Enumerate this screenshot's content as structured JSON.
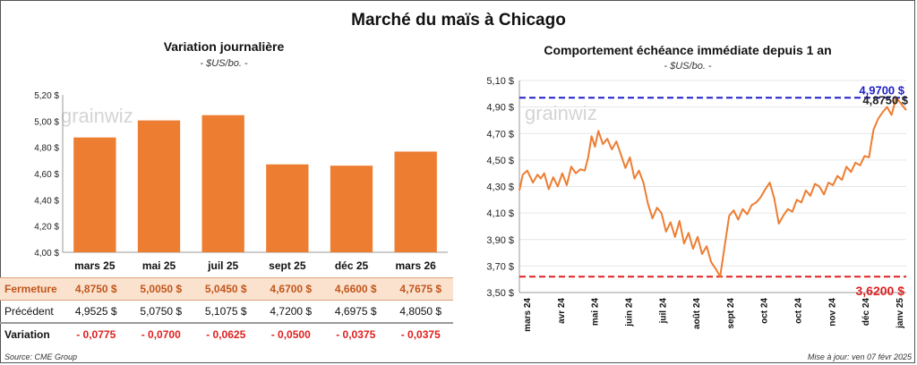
{
  "title": "Marché du maïs à Chicago",
  "left": {
    "subtitle": "Variation journalière",
    "unit": "- $US/bo. -",
    "watermark": "grainwiz"
  },
  "right": {
    "subtitle": "Comportement échéance immédiate depuis 1 an",
    "unit": "- $US/bo. -",
    "watermark": "grainwiz",
    "max_label": "4,9700 $",
    "last_label": "4,8750 $",
    "min_label": "3,6200 $"
  },
  "table": {
    "row_labels": {
      "close": "Fermeture",
      "prev": "Précédent",
      "var": "Variation"
    },
    "close": [
      "4,8750  $",
      "5,0050  $",
      "5,0450  $",
      "4,6700  $",
      "4,6600  $",
      "4,7675  $"
    ],
    "prev": [
      "4,9525  $",
      "5,0750  $",
      "5,1075  $",
      "4,7200  $",
      "4,6975  $",
      "4,8050  $"
    ],
    "var": [
      "- 0,0775",
      "- 0,0700",
      "- 0,0625",
      "- 0,0500",
      "- 0,0375",
      "- 0,0375"
    ]
  },
  "footer": {
    "source": "Source: CME Group",
    "updated": "Mise à jour: ven 07 févr 2025"
  },
  "colors": {
    "bar": "#ed7d31",
    "line": "#ed7d31",
    "max_line": "#1f1fc8",
    "min_line": "#e02020"
  },
  "chart_data": [
    {
      "type": "bar",
      "title": "Variation journalière",
      "categories": [
        "mars 25",
        "mai 25",
        "juil 25",
        "sept 25",
        "déc 25",
        "mars 26"
      ],
      "values": [
        4.875,
        5.005,
        5.045,
        4.67,
        4.66,
        4.7675
      ],
      "ylim": [
        4.0,
        5.2
      ],
      "yticks": [
        4.0,
        4.2,
        4.4,
        4.6,
        4.8,
        5.0,
        5.2
      ],
      "ytick_labels": [
        "4,00 $",
        "4,20 $",
        "4,40 $",
        "4,60 $",
        "4,80 $",
        "5,00 $",
        "5,20 $"
      ],
      "grid": false
    },
    {
      "type": "line",
      "title": "Comportement échéance immédiate depuis 1 an",
      "ylim": [
        3.5,
        5.1
      ],
      "yticks": [
        3.5,
        3.7,
        3.9,
        4.1,
        4.3,
        4.5,
        4.7,
        4.9,
        5.1
      ],
      "ytick_labels": [
        "3,50 $",
        "3,70 $",
        "3,90 $",
        "4,10 $",
        "4,30 $",
        "4,50 $",
        "4,70 $",
        "4,90 $",
        "5,10 $"
      ],
      "xticks": [
        "mars 24",
        "avr 24",
        "mai 24",
        "juin 24",
        "juil 24",
        "août 24",
        "sept 24",
        "oct 24",
        "oct 24",
        "nov 24",
        "déc 24",
        "janv 25"
      ],
      "x_range_days": [
        0,
        343
      ],
      "max": 4.97,
      "min": 3.62,
      "series": [
        {
          "x": [
            0,
            3,
            7,
            12,
            16,
            19,
            22,
            26,
            30,
            34,
            38,
            42,
            46,
            50,
            54,
            58,
            61,
            64,
            67,
            70,
            74,
            78,
            82,
            86,
            90,
            94,
            98,
            102,
            106,
            110,
            114,
            118,
            122,
            126,
            130,
            134,
            138,
            142,
            146,
            150,
            154,
            158,
            162,
            166,
            170,
            174,
            178,
            182,
            186,
            190,
            194,
            198,
            202,
            206,
            210,
            214,
            218,
            222,
            226,
            230,
            234,
            238,
            242,
            246,
            250,
            254,
            258,
            262,
            266,
            270,
            274,
            278,
            282,
            286,
            290,
            294,
            298,
            302,
            306,
            310,
            314,
            318,
            322,
            326,
            330,
            334,
            338,
            343
          ],
          "y": [
            4.27,
            4.39,
            4.42,
            4.33,
            4.39,
            4.36,
            4.4,
            4.28,
            4.37,
            4.3,
            4.4,
            4.31,
            4.45,
            4.4,
            4.43,
            4.42,
            4.52,
            4.68,
            4.6,
            4.72,
            4.62,
            4.66,
            4.58,
            4.64,
            4.54,
            4.44,
            4.52,
            4.36,
            4.42,
            4.33,
            4.17,
            4.06,
            4.14,
            4.1,
            3.96,
            4.03,
            3.92,
            4.04,
            3.87,
            3.95,
            3.83,
            3.92,
            3.79,
            3.85,
            3.73,
            3.68,
            3.62,
            3.85,
            4.08,
            4.12,
            4.05,
            4.13,
            4.09,
            4.16,
            4.18,
            4.22,
            4.28,
            4.33,
            4.21,
            4.02,
            4.08,
            4.13,
            4.11,
            4.2,
            4.18,
            4.27,
            4.23,
            4.32,
            4.3,
            4.24,
            4.33,
            4.31,
            4.38,
            4.35,
            4.45,
            4.41,
            4.48,
            4.46,
            4.53,
            4.52,
            4.73,
            4.81,
            4.86,
            4.9,
            4.84,
            4.97,
            4.93,
            4.875
          ]
        }
      ]
    }
  ]
}
